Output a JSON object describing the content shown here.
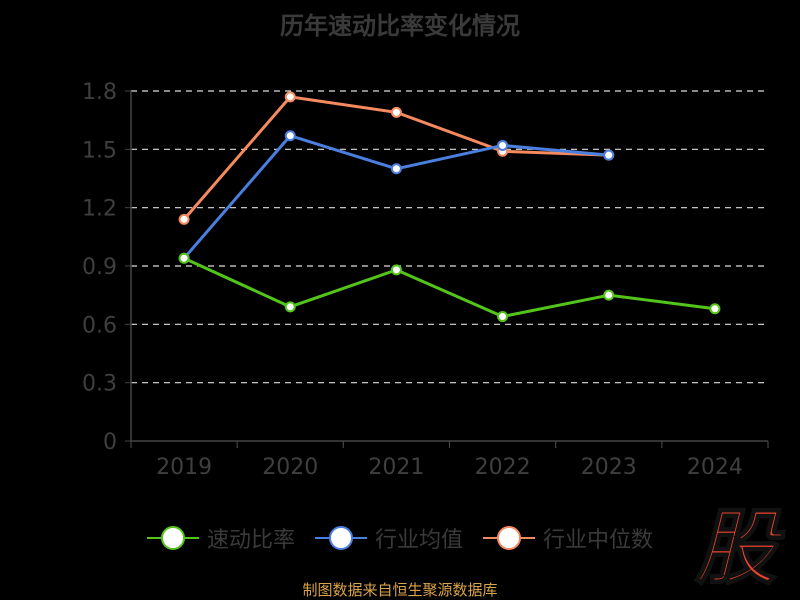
{
  "title": "历年速动比率变化情况",
  "source_note": "制图数据来自恒生聚源数据库",
  "logo_text": "股",
  "colors": {
    "background": "#000000",
    "axis": "#444444",
    "tick_label": "#3f3f3f",
    "grid": "#dddddd",
    "logo": "#e8432e"
  },
  "chart_data": {
    "type": "line",
    "title": "历年速动比率变化情况",
    "xlabel": "",
    "ylabel": "",
    "categories": [
      "2019",
      "2020",
      "2021",
      "2022",
      "2023",
      "2024"
    ],
    "ylim": [
      0,
      1.8
    ],
    "yticks": [
      0,
      0.3,
      0.6,
      0.9,
      1.2,
      1.5,
      1.8
    ],
    "ytick_labels": [
      "0",
      "0.3",
      "0.6",
      "0.9",
      "1.2",
      "1.5",
      "1.8"
    ],
    "grid": true,
    "legend_position": "bottom",
    "series": [
      {
        "name": "速动比率",
        "color": "#52c41a",
        "values": [
          0.94,
          0.69,
          0.88,
          0.64,
          0.75,
          0.68
        ]
      },
      {
        "name": "行业均值",
        "color": "#4a7fe0",
        "values": [
          0.94,
          1.57,
          1.4,
          1.52,
          1.47,
          null
        ]
      },
      {
        "name": "行业中位数",
        "color": "#f5895f",
        "values": [
          1.14,
          1.77,
          1.69,
          1.49,
          1.47,
          null
        ]
      }
    ]
  }
}
